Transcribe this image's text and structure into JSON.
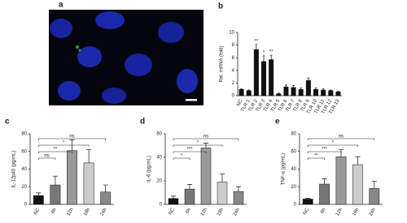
{
  "panel_labels": [
    "a",
    "b",
    "c",
    "d",
    "e"
  ],
  "chart_data": [
    {
      "type": "bar",
      "y_label": "Rel. mRNA (fold)",
      "categories": [
        "NC",
        "TLR 1",
        "TLR 2",
        "TLR 3",
        "TLR 4",
        "TLR 5",
        "TLR 6",
        "TLR 7",
        "TLR 8",
        "TLR 9",
        "TLR 10",
        "TLR 11",
        "TLR 12",
        "TLR 13"
      ],
      "values": [
        1,
        0.8,
        7.3,
        5.4,
        5.7,
        0.3,
        1.4,
        1.3,
        1.0,
        2.4,
        1.0,
        0.9,
        0.8,
        0.6
      ],
      "errors": [
        0.1,
        0.1,
        0.8,
        0.9,
        0.7,
        0.1,
        0.3,
        0.3,
        0.2,
        0.4,
        0.2,
        0.2,
        0.1,
        0.1
      ],
      "colors": [
        "#111",
        "#111",
        "#111",
        "#111",
        "#111",
        "#111",
        "#111",
        "#111",
        "#111",
        "#111",
        "#111",
        "#111",
        "#111",
        "#111"
      ],
      "annotations": [
        {
          "category": "TLR 2",
          "text": "**"
        },
        {
          "category": "TLR 3",
          "text": "*"
        },
        {
          "category": "TLR 4",
          "text": "**"
        }
      ],
      "ylim": [
        0,
        10
      ],
      "yticks": [
        0,
        2,
        4,
        6,
        8,
        10
      ]
    },
    {
      "type": "bar",
      "y_label": "IL-12p40 (pg/mL)",
      "categories": [
        "NC",
        "6h",
        "12h",
        "18h",
        "24h"
      ],
      "values": [
        10,
        22,
        61,
        47,
        14
      ],
      "errors": [
        3,
        10,
        12,
        15,
        8
      ],
      "colors": [
        "#111",
        "#777",
        "#999",
        "#ccc",
        "#888"
      ],
      "comparisons": [
        {
          "from": "NC",
          "to": "6h",
          "text": "ns"
        },
        {
          "from": "NC",
          "to": "12h",
          "text": "**"
        },
        {
          "from": "NC",
          "to": "18h",
          "text": "*"
        },
        {
          "from": "NC",
          "to": "24h",
          "text": "ns"
        }
      ],
      "ylim": [
        0,
        80
      ],
      "yticks": [
        0,
        20,
        40,
        60,
        80
      ]
    },
    {
      "type": "bar",
      "y_label": "IL-6  (pg/mL)",
      "categories": [
        "NC",
        "6h",
        "12h",
        "18h",
        "24h"
      ],
      "values": [
        5,
        13,
        48,
        19,
        11
      ],
      "errors": [
        2,
        4,
        4,
        7,
        4
      ],
      "colors": [
        "#111",
        "#777",
        "#999",
        "#ccc",
        "#888"
      ],
      "comparisons": [
        {
          "from": "NC",
          "to": "6h",
          "text": "*"
        },
        {
          "from": "NC",
          "to": "12h",
          "text": "***"
        },
        {
          "from": "NC",
          "to": "18h",
          "text": "*"
        },
        {
          "from": "NC",
          "to": "24h",
          "text": "ns"
        }
      ],
      "ylim": [
        0,
        60
      ],
      "yticks": [
        0,
        20,
        40,
        60
      ]
    },
    {
      "type": "bar",
      "y_label": "TNF-α (pg/mL)",
      "categories": [
        "NC",
        "6h",
        "12h",
        "18h",
        "24h"
      ],
      "values": [
        6,
        23,
        54,
        45,
        18
      ],
      "errors": [
        1,
        6,
        8,
        9,
        8
      ],
      "colors": [
        "#111",
        "#777",
        "#999",
        "#ccc",
        "#888"
      ],
      "comparisons": [
        {
          "from": "NC",
          "to": "6h",
          "text": "**"
        },
        {
          "from": "NC",
          "to": "12h",
          "text": "***"
        },
        {
          "from": "NC",
          "to": "18h",
          "text": "*"
        },
        {
          "from": "NC",
          "to": "24h",
          "text": "ns"
        }
      ],
      "ylim": [
        0,
        80
      ],
      "yticks": [
        0,
        20,
        40,
        60,
        80
      ]
    }
  ]
}
